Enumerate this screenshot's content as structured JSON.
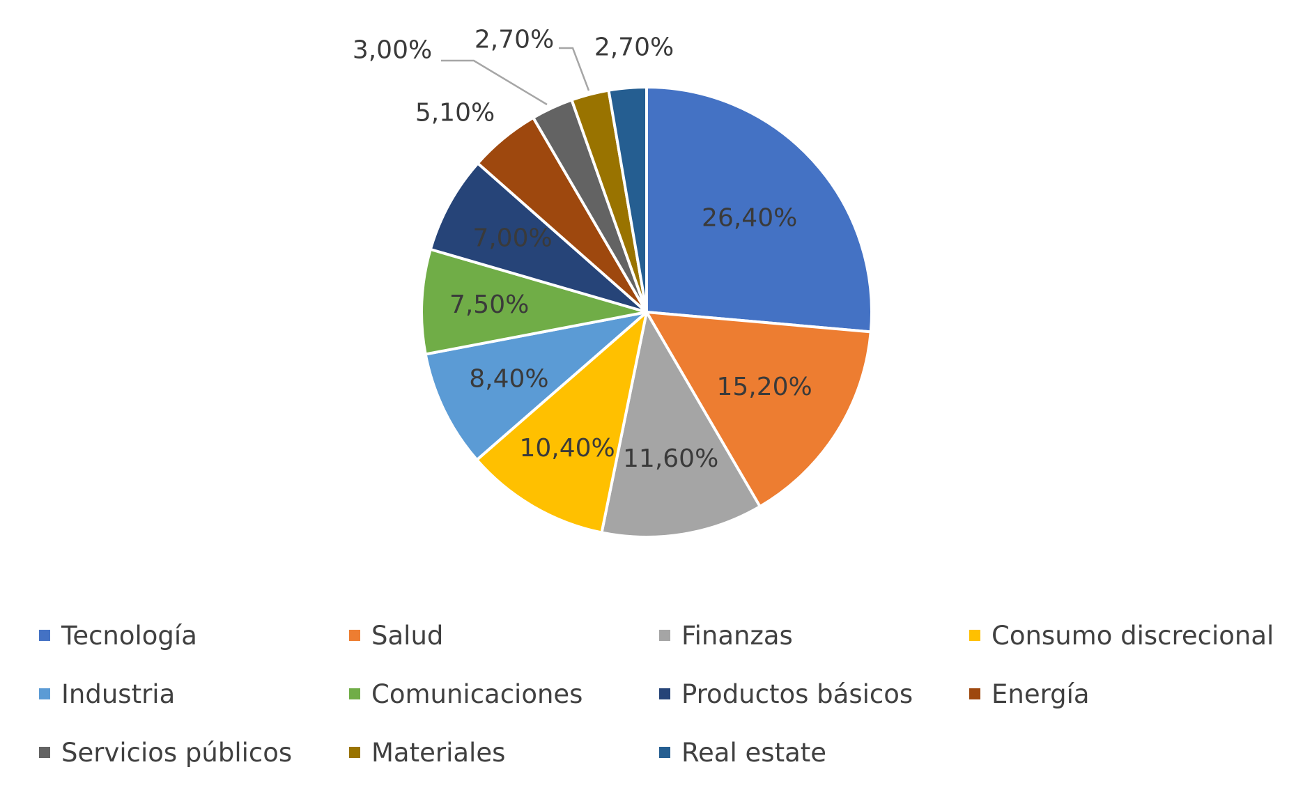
{
  "chart_data": {
    "type": "pie",
    "title": "",
    "unit": "%",
    "legend_position": "bottom",
    "slices": [
      {
        "label": "Tecnología",
        "value": 26.4,
        "display": "26,40%",
        "color": "#4472C4"
      },
      {
        "label": "Salud",
        "value": 15.2,
        "display": "15,20%",
        "color": "#ED7D31"
      },
      {
        "label": "Finanzas",
        "value": 11.6,
        "display": "11,60%",
        "color": "#A5A5A5"
      },
      {
        "label": "Consumo discrecional",
        "value": 10.4,
        "display": "10,40%",
        "color": "#FFC000"
      },
      {
        "label": "Industria",
        "value": 8.4,
        "display": "8,40%",
        "color": "#5B9BD5"
      },
      {
        "label": "Comunicaciones",
        "value": 7.5,
        "display": "7,50%",
        "color": "#70AD47"
      },
      {
        "label": "Productos básicos",
        "value": 7.0,
        "display": "7,00%",
        "color": "#264478"
      },
      {
        "label": "Energía",
        "value": 5.1,
        "display": "5,10%",
        "color": "#9E480E"
      },
      {
        "label": "Servicios públicos",
        "value": 3.0,
        "display": "3,00%",
        "color": "#636363"
      },
      {
        "label": "Materiales",
        "value": 2.7,
        "display": "2,70%",
        "color": "#997300"
      },
      {
        "label": "Real estate",
        "value": 2.7,
        "display": "2,70%",
        "color": "#255E91"
      }
    ]
  }
}
